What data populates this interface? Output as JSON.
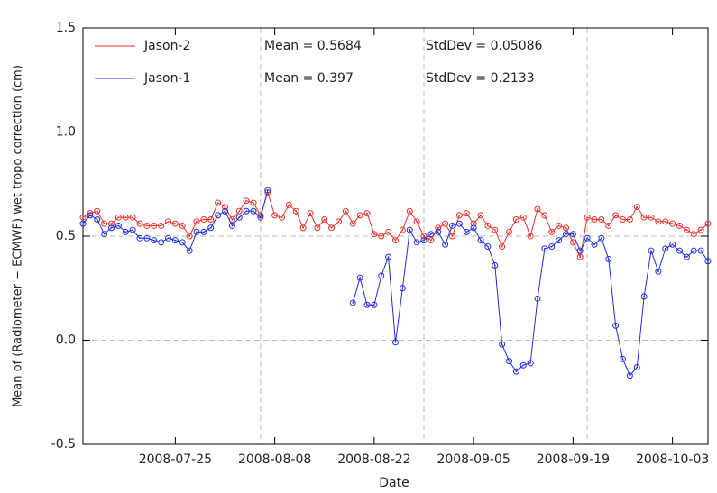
{
  "chart_data": {
    "type": "line",
    "xlabel": "Date",
    "ylabel": "Mean of (Radiometer − ECMWF) wet tropo correction (cm)",
    "xlim": [
      "2008-07-12",
      "2008-10-08"
    ],
    "xticks": [
      "2008-07-25",
      "2008-08-08",
      "2008-08-22",
      "2008-09-05",
      "2008-09-19",
      "2008-10-03"
    ],
    "xgrid": [
      "2008-08-06",
      "2008-08-29",
      "2008-09-21"
    ],
    "ylim": [
      -0.5,
      1.5
    ],
    "yticks": [
      -0.5,
      {
        "value": 0,
        "label": "0.0"
      },
      0.5,
      {
        "value": 1,
        "label": "1.0"
      },
      1.5
    ],
    "grid": true,
    "x": [
      "2008-07-12",
      "2008-07-13",
      "2008-07-14",
      "2008-07-15",
      "2008-07-16",
      "2008-07-17",
      "2008-07-18",
      "2008-07-19",
      "2008-07-20",
      "2008-07-21",
      "2008-07-22",
      "2008-07-23",
      "2008-07-24",
      "2008-07-25",
      "2008-07-26",
      "2008-07-27",
      "2008-07-28",
      "2008-07-29",
      "2008-07-30",
      "2008-07-31",
      "2008-08-01",
      "2008-08-02",
      "2008-08-03",
      "2008-08-04",
      "2008-08-05",
      "2008-08-06",
      "2008-08-07",
      "2008-08-08",
      "2008-08-09",
      "2008-08-10",
      "2008-08-11",
      "2008-08-12",
      "2008-08-13",
      "2008-08-14",
      "2008-08-15",
      "2008-08-16",
      "2008-08-17",
      "2008-08-18",
      "2008-08-19",
      "2008-08-20",
      "2008-08-21",
      "2008-08-22",
      "2008-08-23",
      "2008-08-24",
      "2008-08-25",
      "2008-08-26",
      "2008-08-27",
      "2008-08-28",
      "2008-08-29",
      "2008-08-30",
      "2008-08-31",
      "2008-09-01",
      "2008-09-02",
      "2008-09-03",
      "2008-09-04",
      "2008-09-05",
      "2008-09-06",
      "2008-09-07",
      "2008-09-08",
      "2008-09-09",
      "2008-09-10",
      "2008-09-11",
      "2008-09-12",
      "2008-09-13",
      "2008-09-14",
      "2008-09-15",
      "2008-09-16",
      "2008-09-17",
      "2008-09-18",
      "2008-09-19",
      "2008-09-20",
      "2008-09-21",
      "2008-09-22",
      "2008-09-23",
      "2008-09-24",
      "2008-09-25",
      "2008-09-26",
      "2008-09-27",
      "2008-09-28",
      "2008-09-29",
      "2008-09-30",
      "2008-10-01",
      "2008-10-02",
      "2008-10-03",
      "2008-10-04",
      "2008-10-05",
      "2008-10-06",
      "2008-10-07",
      "2008-10-08"
    ],
    "series": [
      {
        "name": "Jason-2",
        "color": "#e8322e",
        "stats": [
          "Mean = 0.5684",
          "StdDev = 0.05086"
        ],
        "values": [
          0.59,
          0.61,
          0.62,
          0.56,
          0.56,
          0.59,
          0.59,
          0.59,
          0.56,
          0.55,
          0.55,
          0.55,
          0.57,
          0.56,
          0.55,
          0.5,
          0.57,
          0.58,
          0.58,
          0.66,
          0.64,
          0.58,
          0.62,
          0.67,
          0.66,
          0.6,
          0.71,
          0.6,
          0.59,
          0.65,
          0.62,
          0.54,
          0.61,
          0.54,
          0.58,
          0.54,
          0.57,
          0.62,
          0.56,
          0.6,
          0.61,
          0.51,
          0.5,
          0.52,
          0.48,
          0.53,
          0.62,
          0.57,
          0.5,
          0.48,
          0.54,
          0.56,
          0.5,
          0.6,
          0.61,
          0.56,
          0.6,
          0.55,
          0.53,
          0.45,
          0.52,
          0.58,
          0.59,
          0.5,
          0.63,
          0.6,
          0.52,
          0.55,
          0.54,
          0.47,
          0.4,
          0.59,
          0.58,
          0.58,
          0.55,
          0.6,
          0.58,
          0.58,
          0.64,
          0.59,
          0.59,
          0.57,
          0.57,
          0.56,
          0.55,
          0.53,
          0.51,
          0.53,
          0.56
        ]
      },
      {
        "name": "Jason-1",
        "color": "#1f2de0",
        "stats": [
          "Mean = 0.397",
          "StdDev = 0.2133"
        ],
        "values": [
          0.56,
          0.6,
          0.58,
          0.51,
          0.54,
          0.55,
          0.52,
          0.53,
          0.49,
          0.49,
          0.48,
          0.47,
          0.49,
          0.48,
          0.47,
          0.43,
          0.52,
          0.52,
          0.54,
          0.6,
          0.62,
          0.55,
          0.59,
          0.62,
          0.62,
          0.59,
          0.72,
          null,
          null,
          null,
          null,
          null,
          null,
          null,
          null,
          null,
          null,
          null,
          0.18,
          0.3,
          0.17,
          0.17,
          0.31,
          0.4,
          -0.01,
          0.25,
          0.53,
          0.47,
          0.48,
          0.51,
          0.52,
          0.46,
          0.55,
          0.56,
          0.52,
          0.54,
          0.48,
          0.45,
          0.36,
          -0.02,
          -0.1,
          -0.15,
          -0.12,
          -0.11,
          0.2,
          0.44,
          0.45,
          0.48,
          0.51,
          0.51,
          0.43,
          0.49,
          0.46,
          0.49,
          0.39,
          0.07,
          -0.09,
          -0.17,
          -0.13,
          0.21,
          0.43,
          0.33,
          0.44,
          0.46,
          0.43,
          0.4,
          0.43,
          0.43,
          0.38
        ]
      }
    ]
  }
}
